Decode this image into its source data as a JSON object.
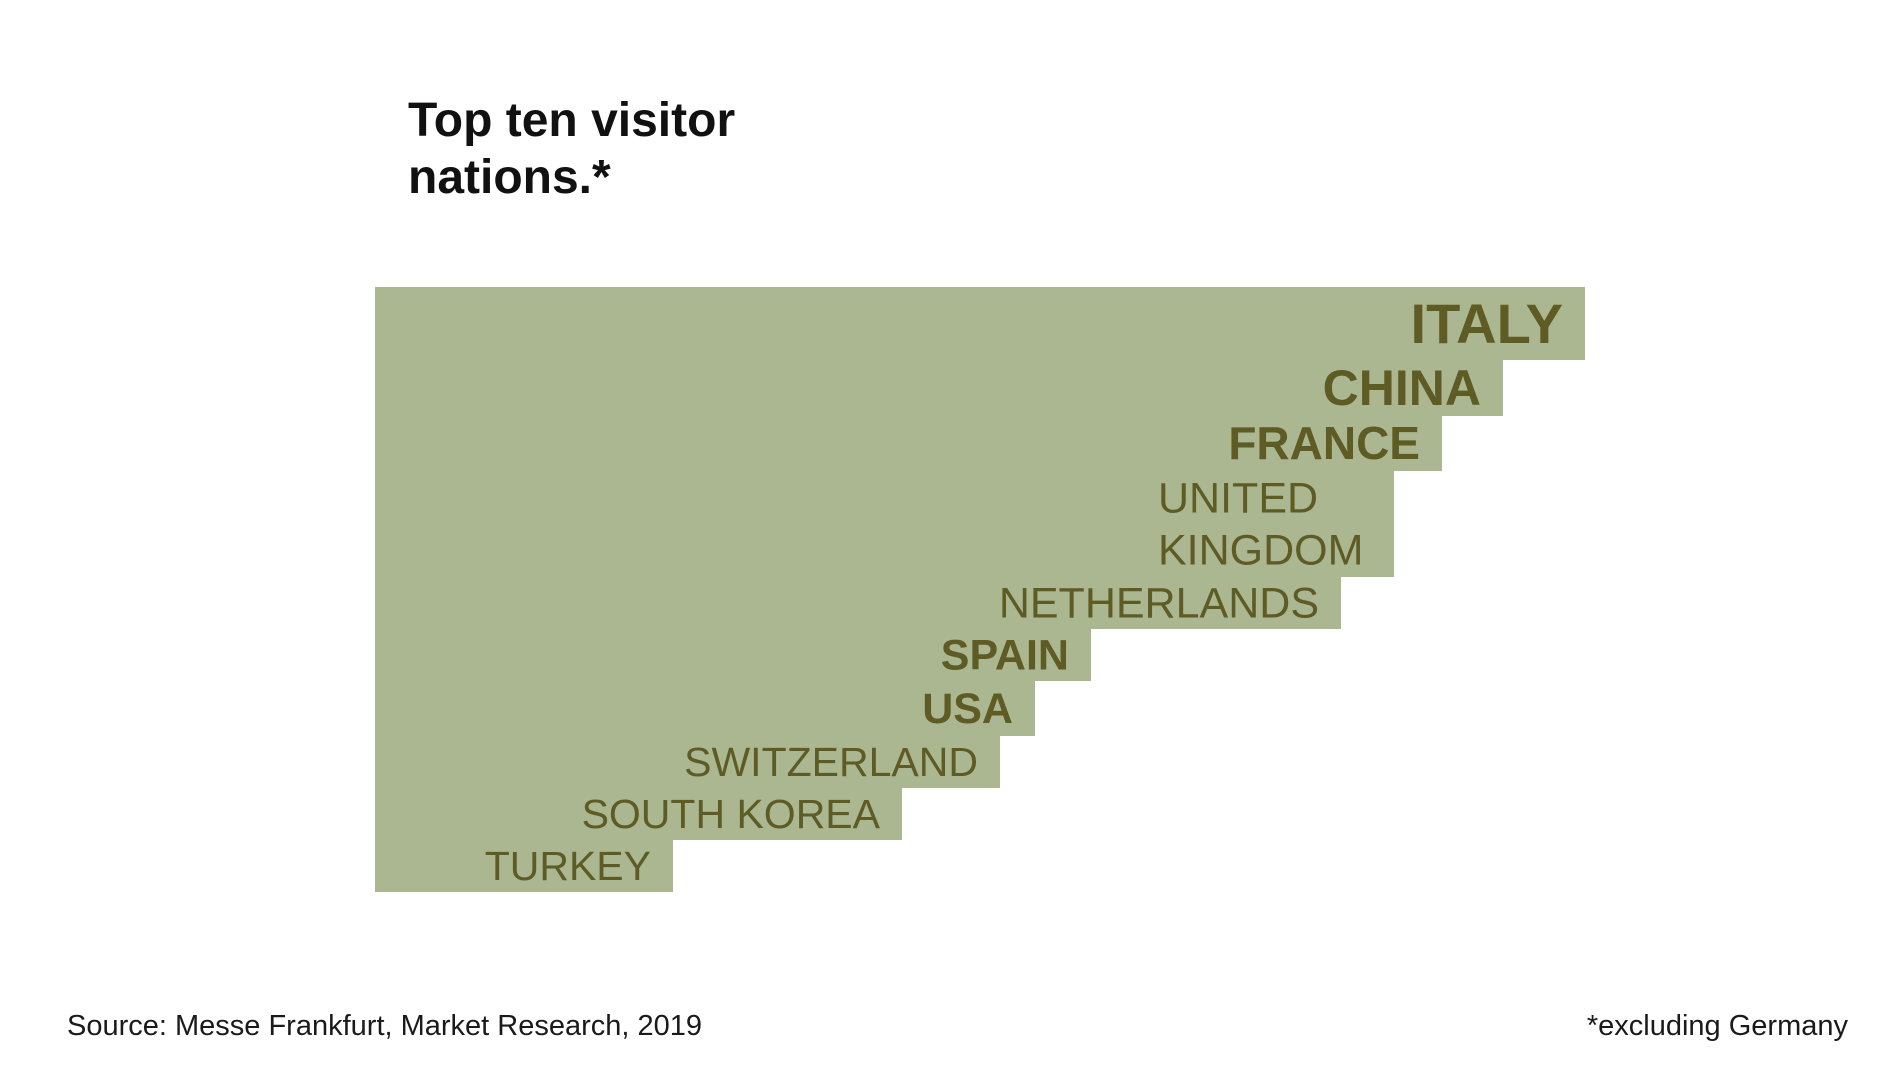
{
  "chart_data": {
    "type": "bar",
    "orientation": "horizontal-stepped",
    "title_lines": [
      "Top ten visitor",
      "nations.*"
    ],
    "categories": [
      "ITALY",
      "CHINA",
      "FRANCE",
      "UNITED KINGDOM",
      "NETHERLANDS",
      "SPAIN",
      "USA",
      "SWITZERLAND",
      "SOUTH KOREA",
      "TURKEY"
    ],
    "rank": [
      1,
      2,
      3,
      4,
      5,
      6,
      7,
      8,
      9,
      10
    ],
    "label_lines": [
      [
        "ITALY"
      ],
      [
        "CHINA"
      ],
      [
        "FRANCE"
      ],
      [
        "UNITED",
        "KINGDOM"
      ],
      [
        "NETHERLANDS"
      ],
      [
        "SPAIN"
      ],
      [
        "USA"
      ],
      [
        "SWITZERLAND"
      ],
      [
        "SOUTH KOREA"
      ],
      [
        "TURKEY"
      ]
    ],
    "label_weight": [
      "bold",
      "bold",
      "bold",
      "normal",
      "normal",
      "bold",
      "bold",
      "normal",
      "normal",
      "normal"
    ],
    "xlabel": "",
    "ylabel": "",
    "grid": false,
    "legend": "none"
  },
  "colors": {
    "bar_fill": "#abb791",
    "label_text": "#5e5b25",
    "title_text": "#111111",
    "footer_text": "#1a1a1a"
  },
  "footer": {
    "source": "Source: Messe Frankfurt, Market Research, 2019",
    "footnote": "*excluding Germany"
  }
}
